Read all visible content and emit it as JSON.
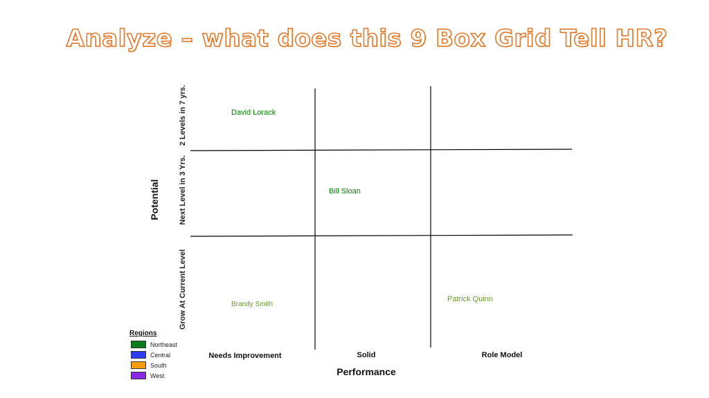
{
  "title": "Analyze – what does this 9 Box Grid Tell HR?",
  "axes": {
    "y_title": "Potential",
    "x_title": "Performance",
    "rows": [
      "2 Levels in 7 yrs.",
      "Next Level in 3 Yrs.",
      "Grow At Current Level"
    ],
    "columns": [
      "Needs Improvement",
      "Solid",
      "Role Model"
    ]
  },
  "employees": [
    {
      "name": "David Lorack",
      "row": "2 Levels in 7 yrs.",
      "column": "Needs Improvement",
      "color": "#008000"
    },
    {
      "name": "Bill Sloan",
      "row": "Next Level in 3 Yrs.",
      "column": "Solid",
      "color": "#008000"
    },
    {
      "name": "Brandy Smith",
      "row": "Grow At Current Level",
      "column": "Needs Improvement",
      "color": "#6a9a2a"
    },
    {
      "name": "Patrick Quinn",
      "row": "Grow At Current Level",
      "column": "Role Model",
      "color": "#6a9a2a"
    }
  ],
  "legend": {
    "title": "Regions",
    "items": [
      {
        "label": "Northeast",
        "color": "#0a7a1e"
      },
      {
        "label": "Central",
        "color": "#2e3df0"
      },
      {
        "label": "South",
        "color": "#f59c10"
      },
      {
        "label": "West",
        "color": "#8a2be2"
      }
    ]
  }
}
